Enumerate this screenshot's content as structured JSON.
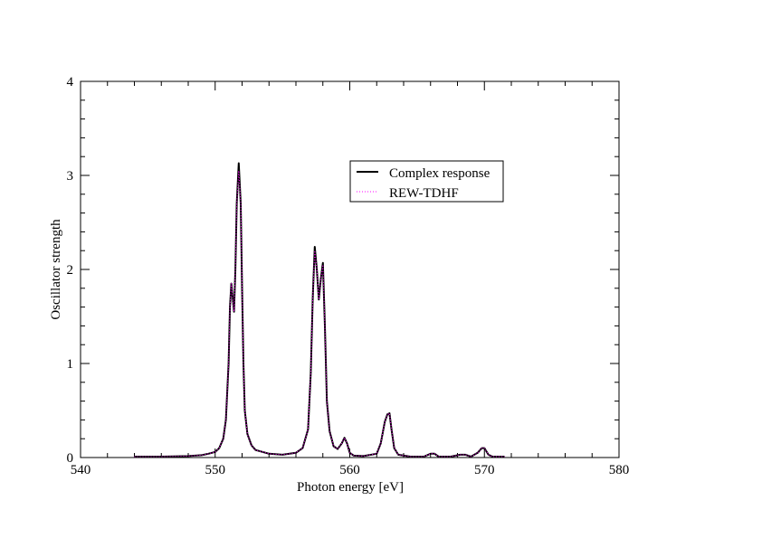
{
  "chart_data": {
    "type": "line",
    "title": "",
    "xlabel": "Photon energy [eV]",
    "ylabel": "Oscillator strength",
    "xlim": [
      540,
      580
    ],
    "ylim": [
      0,
      4
    ],
    "xticks": [
      "540",
      "550",
      "560",
      "570",
      "580"
    ],
    "yticks": [
      "0",
      "1",
      "2",
      "3",
      "4"
    ],
    "x_minor_step": 2,
    "y_minor_step": 0.2,
    "grid": false,
    "legend_position": "top-right (inside)",
    "series": [
      {
        "name": "Complex response",
        "color": "#000000",
        "style": "solid",
        "x": [
          544.0,
          546.0,
          548.0,
          549.0,
          549.5,
          550.0,
          550.3,
          550.6,
          550.8,
          551.0,
          551.1,
          551.2,
          551.3,
          551.4,
          551.5,
          551.6,
          551.75,
          551.9,
          552.0,
          552.1,
          552.2,
          552.4,
          552.7,
          553.0,
          554.0,
          555.0,
          556.0,
          556.5,
          556.9,
          557.1,
          557.25,
          557.4,
          557.55,
          557.7,
          557.85,
          558.0,
          558.15,
          558.3,
          558.5,
          558.8,
          559.1,
          559.4,
          559.6,
          559.8,
          560.0,
          560.3,
          561.0,
          562.0,
          562.3,
          562.6,
          562.8,
          562.95,
          563.1,
          563.3,
          563.6,
          564.5,
          565.5,
          566.0,
          566.3,
          566.6,
          567.5,
          568.2,
          568.6,
          569.0,
          569.5,
          569.8,
          570.0,
          570.3,
          570.6,
          571.5
        ],
        "y": [
          0.01,
          0.01,
          0.015,
          0.025,
          0.04,
          0.06,
          0.1,
          0.2,
          0.4,
          1.0,
          1.6,
          1.85,
          1.7,
          1.55,
          2.0,
          2.7,
          3.13,
          2.7,
          1.8,
          1.0,
          0.5,
          0.25,
          0.13,
          0.08,
          0.04,
          0.03,
          0.05,
          0.1,
          0.3,
          0.9,
          1.7,
          2.24,
          2.0,
          1.68,
          1.9,
          2.07,
          1.4,
          0.6,
          0.28,
          0.12,
          0.09,
          0.15,
          0.21,
          0.15,
          0.05,
          0.02,
          0.015,
          0.04,
          0.15,
          0.38,
          0.46,
          0.47,
          0.3,
          0.1,
          0.03,
          0.01,
          0.01,
          0.04,
          0.04,
          0.01,
          0.01,
          0.03,
          0.03,
          0.01,
          0.05,
          0.1,
          0.1,
          0.03,
          0.01,
          0.01
        ]
      },
      {
        "name": "REW-TDHF",
        "color": "#ff00ff",
        "style": "dotted",
        "x": [
          544.0,
          546.0,
          548.0,
          549.0,
          549.5,
          550.0,
          550.3,
          550.6,
          550.8,
          551.0,
          551.1,
          551.2,
          551.3,
          551.4,
          551.5,
          551.6,
          551.75,
          551.9,
          552.0,
          552.1,
          552.2,
          552.4,
          552.7,
          553.0,
          554.0,
          555.0,
          556.0,
          556.5,
          556.9,
          557.1,
          557.25,
          557.4,
          557.55,
          557.7,
          557.85,
          558.0,
          558.15,
          558.3,
          558.5,
          558.8,
          559.1,
          559.4,
          559.6,
          559.8,
          560.0,
          560.3,
          561.0,
          562.0,
          562.3,
          562.6,
          562.8,
          562.95,
          563.1,
          563.3,
          563.6,
          564.5,
          565.5,
          566.0,
          566.3,
          566.6,
          567.5,
          568.2,
          568.6,
          569.0,
          569.5,
          569.8,
          570.0,
          570.3,
          570.6,
          571.5
        ],
        "y": [
          0.01,
          0.01,
          0.015,
          0.025,
          0.04,
          0.06,
          0.1,
          0.2,
          0.4,
          1.0,
          1.6,
          1.85,
          1.7,
          1.55,
          2.0,
          2.7,
          3.05,
          2.7,
          1.8,
          1.0,
          0.5,
          0.25,
          0.13,
          0.08,
          0.04,
          0.03,
          0.05,
          0.1,
          0.3,
          0.9,
          1.7,
          2.2,
          2.0,
          1.68,
          1.9,
          2.05,
          1.4,
          0.6,
          0.28,
          0.12,
          0.09,
          0.15,
          0.21,
          0.15,
          0.05,
          0.02,
          0.015,
          0.04,
          0.15,
          0.38,
          0.46,
          0.47,
          0.3,
          0.1,
          0.03,
          0.01,
          0.01,
          0.04,
          0.04,
          0.01,
          0.01,
          0.03,
          0.03,
          0.01,
          0.05,
          0.1,
          0.1,
          0.03,
          0.01,
          0.01
        ]
      }
    ]
  }
}
